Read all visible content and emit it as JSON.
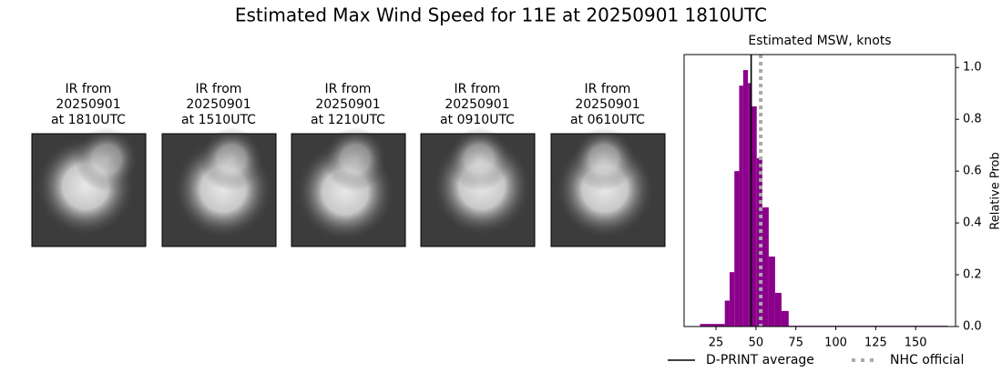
{
  "title": "Estimated Max Wind Speed for 11E at 20250901 1810UTC",
  "panels": [
    {
      "title": [
        "IR from",
        "20250901",
        "at 1810UTC"
      ]
    },
    {
      "title": [
        "IR from",
        "20250901",
        "at 1510UTC"
      ]
    },
    {
      "title": [
        "IR from",
        "20250901",
        "at 1210UTC"
      ]
    },
    {
      "title": [
        "IR from",
        "20250901",
        "at 0910UTC"
      ]
    },
    {
      "title": [
        "IR from",
        "20250901",
        "at 0610UTC"
      ]
    }
  ],
  "chart_data": {
    "type": "histogram",
    "title": "Estimated MSW, knots",
    "y_label": "Relative Prob",
    "bins": [
      15,
      30.5,
      33.5,
      36.5,
      39.5,
      42,
      45,
      47.5,
      50.5,
      54,
      58,
      62,
      66,
      70.5,
      170
    ],
    "counts": [
      0.01,
      0.1,
      0.21,
      0.6,
      0.93,
      0.99,
      0.94,
      0.85,
      0.65,
      0.46,
      0.27,
      0.13,
      0.06,
      0.003
    ],
    "color": "#8b008b",
    "xlim": [
      5,
      175
    ],
    "xticks": [
      25,
      50,
      75,
      100,
      125,
      150
    ],
    "ylim": [
      0,
      1.05
    ],
    "yticks": [
      {
        "value": 0,
        "label": "0.0"
      },
      0.2,
      0.4,
      0.6,
      0.8,
      {
        "value": 1,
        "label": "1.0"
      }
    ],
    "series": [
      {
        "name": "D-PRINT average",
        "color": "#000000",
        "value": 47,
        "style": "solid"
      },
      {
        "name": "NHC official",
        "color": "#aaaaaa",
        "value": 53,
        "style": "dotted"
      }
    ]
  }
}
